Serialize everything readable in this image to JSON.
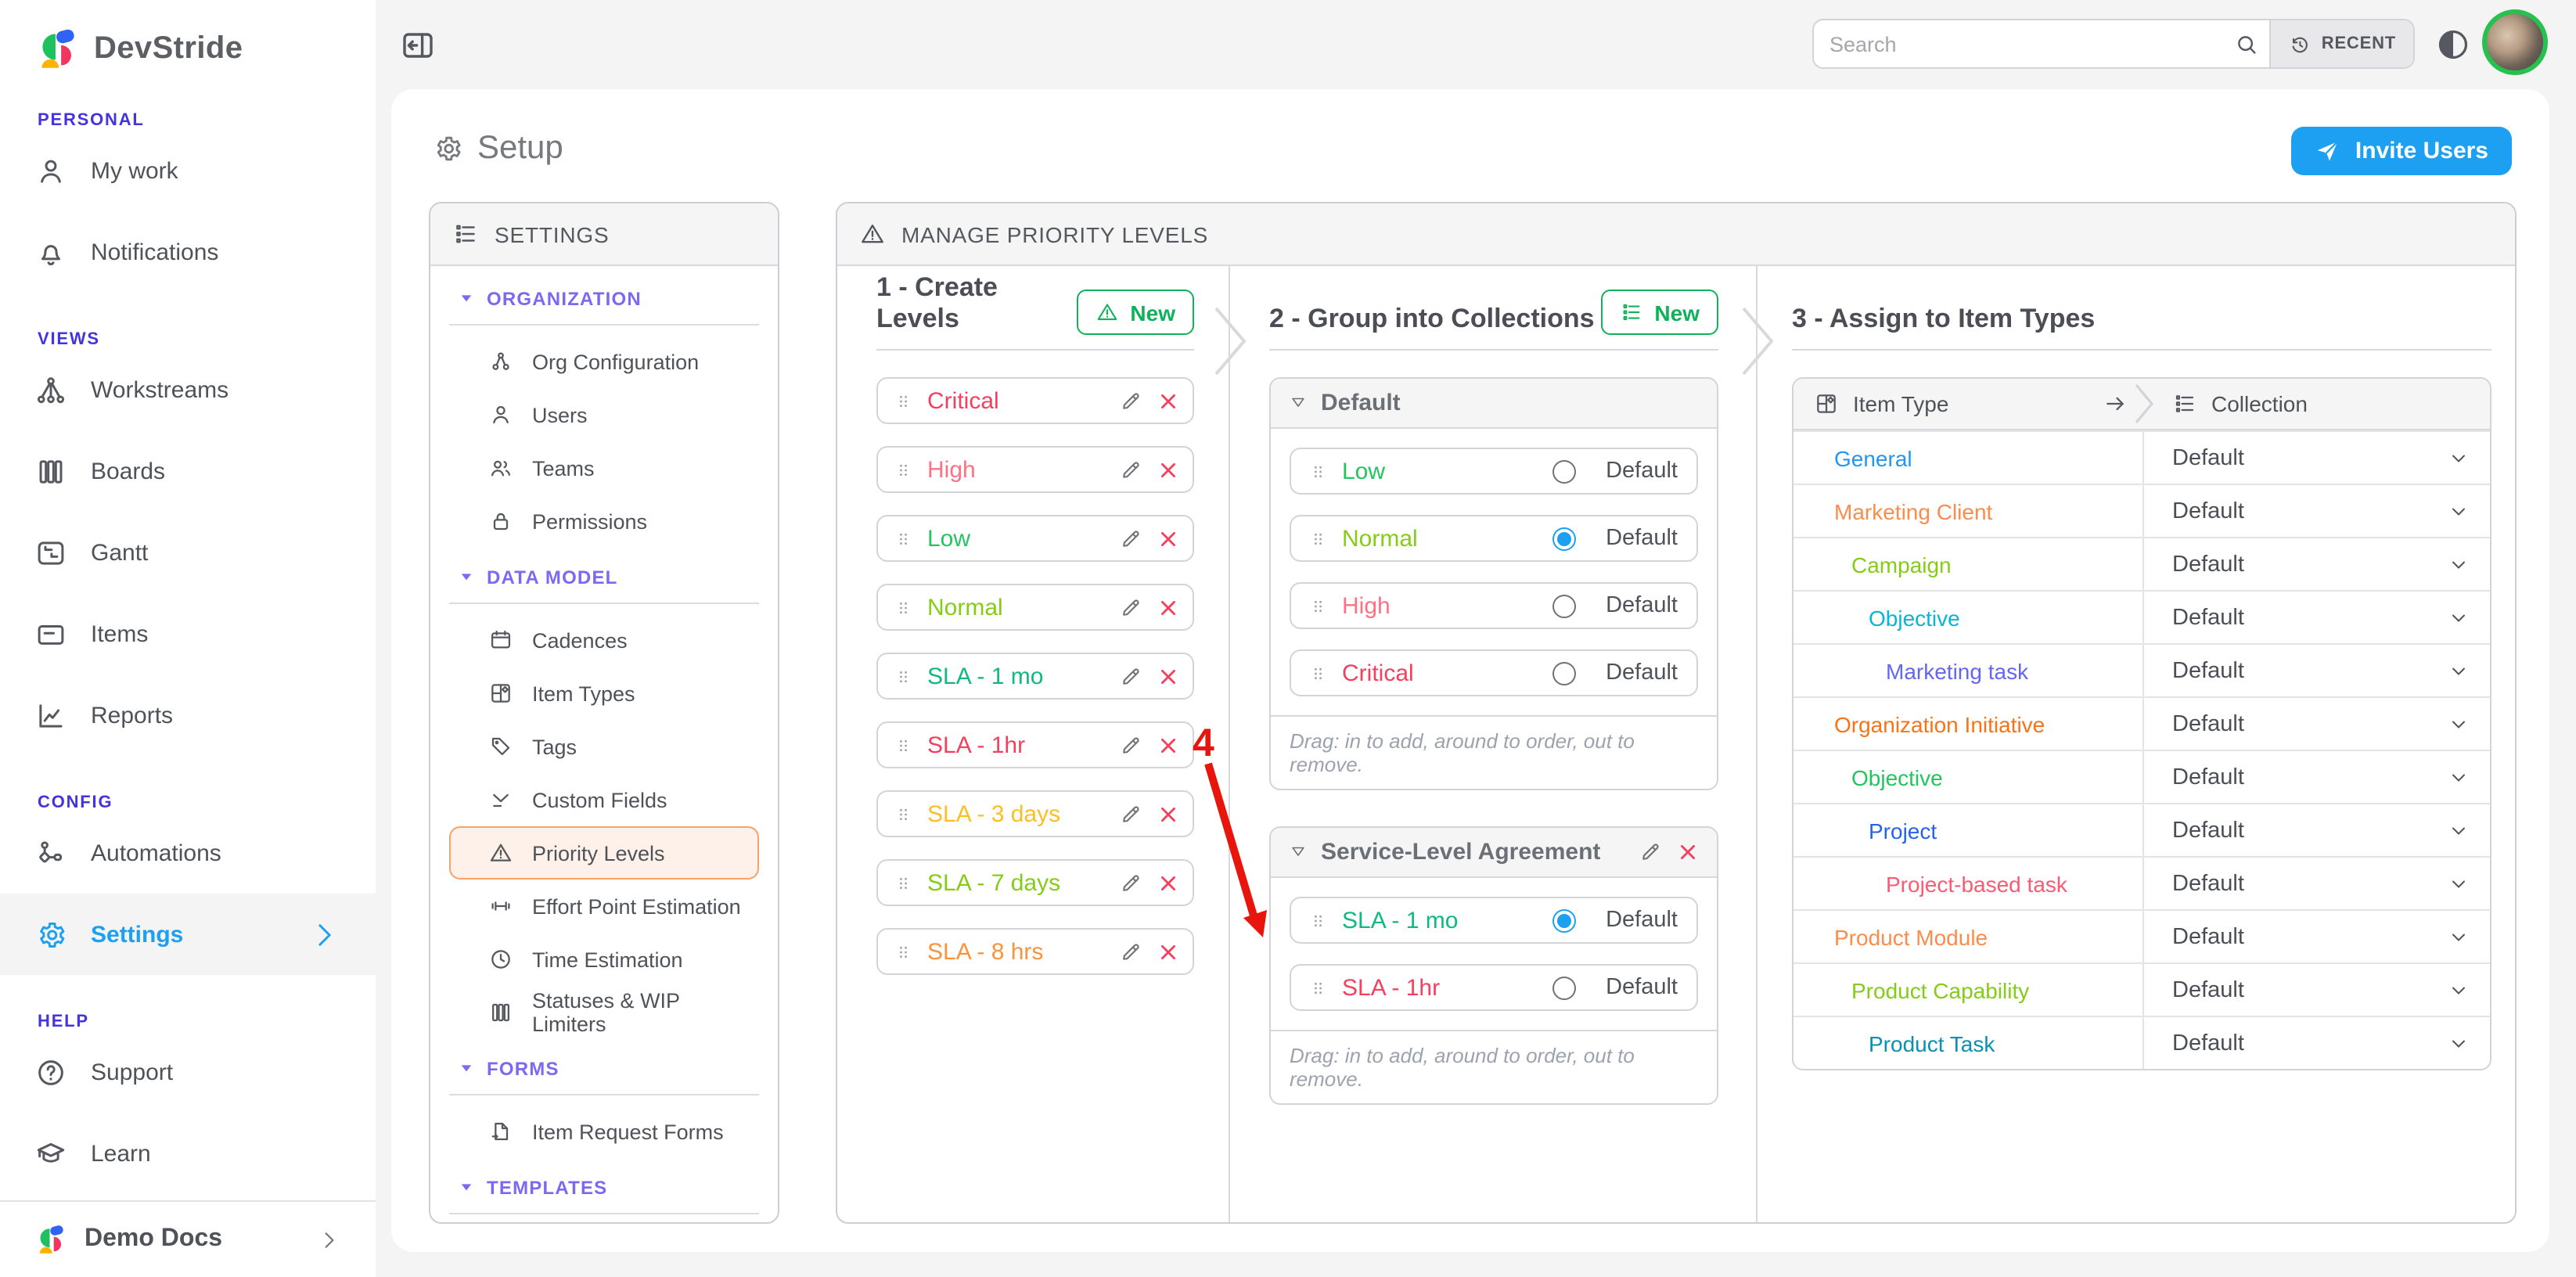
{
  "colors": {
    "accent_blue": "#1da0f2",
    "accent_green": "#0db25b",
    "danger_red": "#f43f5e",
    "selected_orange_border": "#f7a26b",
    "selected_orange_bg": "#fdf1e9",
    "section_purple": "#7b68f3",
    "sidebar_label_indigo": "#4334e0",
    "annotation_red": "#e8150d",
    "avatar_ring_green": "#27c150"
  },
  "sidebar": {
    "logo_text": "DevStride",
    "sections": [
      {
        "label": "PERSONAL",
        "items": [
          {
            "label": "My work",
            "icon": "person"
          },
          {
            "label": "Notifications",
            "icon": "bell"
          }
        ]
      },
      {
        "label": "VIEWS",
        "items": [
          {
            "label": "Workstreams",
            "icon": "workstreams"
          },
          {
            "label": "Boards",
            "icon": "boards"
          },
          {
            "label": "Gantt",
            "icon": "gantt"
          },
          {
            "label": "Items",
            "icon": "items"
          },
          {
            "label": "Reports",
            "icon": "reports"
          }
        ]
      },
      {
        "label": "CONFIG",
        "items": [
          {
            "label": "Automations",
            "icon": "automations"
          },
          {
            "label": "Settings",
            "icon": "gear",
            "selected": true,
            "chevron": true
          }
        ]
      },
      {
        "label": "HELP",
        "items": [
          {
            "label": "Support",
            "icon": "question"
          },
          {
            "label": "Learn",
            "icon": "cap"
          }
        ]
      }
    ],
    "footer": {
      "label": "Demo Docs"
    }
  },
  "topbar": {
    "search_placeholder": "Search",
    "recent_label": "RECENT"
  },
  "page": {
    "title": "Setup",
    "invite_label": "Invite Users"
  },
  "settings_panel": {
    "title": "SETTINGS",
    "groups": [
      {
        "label": "ORGANIZATION",
        "items": [
          {
            "label": "Org Configuration",
            "icon": "org"
          },
          {
            "label": "Users",
            "icon": "person"
          },
          {
            "label": "Teams",
            "icon": "teams"
          },
          {
            "label": "Permissions",
            "icon": "lock"
          }
        ]
      },
      {
        "label": "DATA MODEL",
        "items": [
          {
            "label": "Cadences",
            "icon": "cadence"
          },
          {
            "label": "Item Types",
            "icon": "itemtypes"
          },
          {
            "label": "Tags",
            "icon": "tag"
          },
          {
            "label": "Custom Fields",
            "icon": "customfields"
          },
          {
            "label": "Priority Levels",
            "icon": "warning",
            "selected": true
          },
          {
            "label": "Effort Point Estimation",
            "icon": "effort"
          },
          {
            "label": "Time Estimation",
            "icon": "clock"
          },
          {
            "label": "Statuses & WIP Limiters",
            "icon": "boards"
          }
        ]
      },
      {
        "label": "FORMS",
        "items": [
          {
            "label": "Item Request Forms",
            "icon": "form"
          }
        ]
      },
      {
        "label": "TEMPLATES",
        "items": []
      }
    ]
  },
  "manage_panel": {
    "title": "MANAGE PRIORITY LEVELS",
    "create": {
      "title": "1 - Create Levels",
      "new_label": "New",
      "new_icon": "warning",
      "levels": [
        {
          "name": "Critical",
          "color": "#f43f5e"
        },
        {
          "name": "High",
          "color": "#fb7185"
        },
        {
          "name": "Low",
          "color": "#22c55e"
        },
        {
          "name": "Normal",
          "color": "#84cc16"
        },
        {
          "name": "SLA - 1 mo",
          "color": "#10b981"
        },
        {
          "name": "SLA - 1hr",
          "color": "#f43f5e"
        },
        {
          "name": "SLA - 3 days",
          "color": "#fbbf24"
        },
        {
          "name": "SLA - 7 days",
          "color": "#84cc16"
        },
        {
          "name": "SLA - 8 hrs",
          "color": "#fb923c"
        }
      ]
    },
    "group": {
      "title": "2 - Group into Collections",
      "new_label": "New",
      "new_icon": "list",
      "default_label": "Default",
      "drag_hint": "Drag: in to add, around to order, out to remove.",
      "collections": [
        {
          "name": "Default",
          "editable": false,
          "items": [
            {
              "name": "Low",
              "color": "#22c55e",
              "default": false
            },
            {
              "name": "Normal",
              "color": "#84cc16",
              "default": true
            },
            {
              "name": "High",
              "color": "#fb7185",
              "default": false
            },
            {
              "name": "Critical",
              "color": "#f43f5e",
              "default": false
            }
          ]
        },
        {
          "name": "Service-Level Agreement",
          "editable": true,
          "items": [
            {
              "name": "SLA - 1 mo",
              "color": "#10b981",
              "default": true
            },
            {
              "name": "SLA - 1hr",
              "color": "#f43f5e",
              "default": false
            }
          ]
        }
      ]
    },
    "assign": {
      "title": "3 - Assign to Item Types",
      "col_item_type": "Item Type",
      "col_collection": "Collection",
      "rows": [
        {
          "name": "General",
          "color": "#2196f3",
          "indent": 0,
          "value": "Default"
        },
        {
          "name": "Marketing Client",
          "color": "#fb8c4c",
          "indent": 0,
          "value": "Default"
        },
        {
          "name": "Campaign",
          "color": "#84cc16",
          "indent": 1,
          "value": "Default"
        },
        {
          "name": "Objective",
          "color": "#06b6d4",
          "indent": 2,
          "value": "Default"
        },
        {
          "name": "Marketing task",
          "color": "#6366f1",
          "indent": 3,
          "value": "Default"
        },
        {
          "name": "Organization Initiative",
          "color": "#f97316",
          "indent": 0,
          "value": "Default"
        },
        {
          "name": "Objective",
          "color": "#22c55e",
          "indent": 1,
          "value": "Default"
        },
        {
          "name": "Project",
          "color": "#2563eb",
          "indent": 2,
          "value": "Default"
        },
        {
          "name": "Project-based task",
          "color": "#fb5a74",
          "indent": 3,
          "value": "Default"
        },
        {
          "name": "Product Module",
          "color": "#fb8c4c",
          "indent": 0,
          "value": "Default"
        },
        {
          "name": "Product Capability",
          "color": "#84cc16",
          "indent": 1,
          "value": "Default"
        },
        {
          "name": "Product Task",
          "color": "#0891b2",
          "indent": 2,
          "value": "Default"
        }
      ]
    },
    "annotation": {
      "label": "4"
    }
  }
}
